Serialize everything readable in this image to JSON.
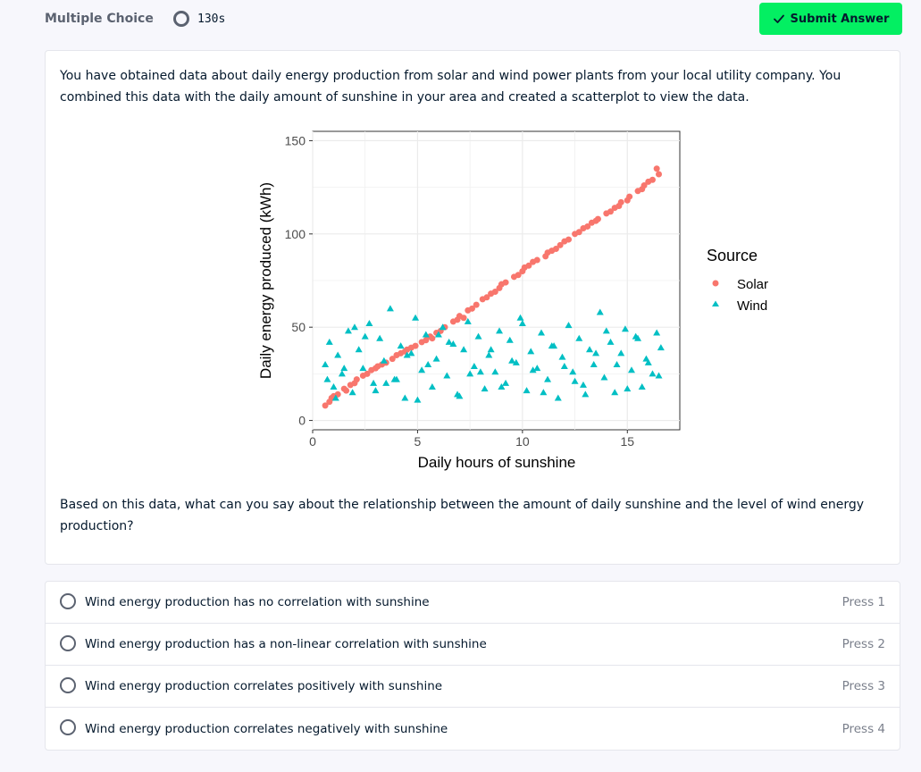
{
  "header": {
    "question_type": "Multiple Choice",
    "timer": "130s",
    "submit_label": "Submit Answer",
    "submit_color": "#03ef62",
    "timer_icon": "timer-ring-icon",
    "submit_icon": "checkmark-icon"
  },
  "prompt": "You have obtained data about daily energy production from solar and wind power plants from your local utility company. You combined this data with the daily amount of sunshine in your area and created a scatterplot to view the data.",
  "question": "Based on this data, what can you say about the relationship between the amount of daily sunshine and the level of wind energy production?",
  "chart_data": {
    "type": "scatter",
    "xlabel": "Daily hours of sunshine",
    "ylabel": "Daily energy produced (kWh)",
    "xlim": [
      0,
      17.5
    ],
    "ylim": [
      -5,
      155
    ],
    "xticks": [
      0,
      5,
      10,
      15
    ],
    "yticks": [
      0,
      50,
      100,
      150
    ],
    "grid": true,
    "legend": {
      "title": "Source",
      "position": "right"
    },
    "series": [
      {
        "name": "Solar",
        "marker": "circle",
        "color": "#f8766d",
        "x": [
          0.6,
          0.9,
          1.2,
          1.5,
          1.8,
          2.1,
          2.4,
          2.8,
          3.1,
          3.5,
          3.8,
          4.2,
          4.5,
          4.9,
          5.2,
          5.6,
          5.9,
          6.3,
          6.7,
          7.0,
          7.4,
          7.8,
          8.1,
          8.5,
          8.9,
          9.2,
          9.6,
          10.0,
          10.3,
          10.7,
          11.1,
          11.4,
          11.8,
          12.2,
          12.5,
          12.9,
          13.3,
          13.6,
          14.0,
          14.4,
          14.7,
          15.1,
          15.5,
          15.8,
          16.2,
          16.5,
          0.8,
          1.6,
          2.6,
          3.3,
          4.0,
          4.7,
          5.4,
          6.1,
          6.9,
          7.6,
          8.3,
          9.0,
          9.8,
          10.5,
          11.2,
          12.0,
          12.7,
          13.5,
          14.2,
          15.0,
          15.7,
          16.4,
          1.0,
          2.0,
          3.0,
          4.4,
          5.7,
          7.2,
          8.7,
          10.1,
          11.6,
          13.1,
          14.6,
          16.0
        ],
        "y": [
          8,
          12,
          14,
          17,
          19,
          22,
          24,
          27,
          29,
          31,
          33,
          36,
          38,
          40,
          42,
          45,
          47,
          50,
          53,
          56,
          59,
          62,
          65,
          68,
          71,
          74,
          77,
          80,
          83,
          86,
          88,
          91,
          94,
          97,
          100,
          103,
          106,
          108,
          111,
          114,
          117,
          120,
          123,
          126,
          129,
          132,
          10,
          16,
          25,
          30,
          35,
          39,
          43,
          48,
          54,
          60,
          66,
          73,
          78,
          85,
          90,
          96,
          101,
          107,
          112,
          118,
          124,
          135,
          13,
          20,
          28,
          37,
          44,
          55,
          69,
          82,
          92,
          104,
          115,
          128
        ]
      },
      {
        "name": "Wind",
        "marker": "triangle",
        "color": "#00bfc4",
        "x": [
          0.6,
          0.8,
          1.0,
          1.2,
          1.4,
          1.7,
          1.9,
          2.2,
          2.4,
          2.7,
          2.9,
          3.2,
          3.4,
          3.7,
          3.9,
          4.2,
          4.4,
          4.7,
          4.9,
          5.2,
          5.4,
          5.7,
          5.9,
          6.2,
          6.4,
          6.7,
          6.9,
          7.2,
          7.4,
          7.7,
          7.9,
          8.2,
          8.4,
          8.7,
          8.9,
          9.2,
          9.4,
          9.7,
          9.9,
          10.2,
          10.4,
          10.7,
          10.9,
          11.2,
          11.4,
          11.7,
          11.9,
          12.2,
          12.4,
          12.7,
          12.9,
          13.2,
          13.4,
          13.7,
          13.9,
          14.2,
          14.4,
          14.7,
          14.9,
          15.2,
          15.4,
          15.7,
          15.9,
          16.2,
          16.4,
          16.6,
          0.7,
          1.5,
          2.5,
          3.5,
          4.5,
          5.5,
          6.5,
          7.5,
          8.5,
          9.5,
          10.5,
          11.5,
          12.5,
          13.5,
          14.5,
          15.5,
          16.5,
          1.1,
          3.0,
          5.0,
          7.0,
          9.0,
          11.0,
          13.0,
          15.0,
          2.0,
          6.0,
          10.0,
          14.0,
          4.0,
          8.0,
          12.0,
          16.0
        ],
        "y": [
          30,
          42,
          18,
          35,
          25,
          48,
          15,
          38,
          28,
          52,
          20,
          44,
          32,
          60,
          22,
          40,
          12,
          36,
          55,
          27,
          46,
          18,
          33,
          50,
          24,
          41,
          14,
          38,
          53,
          29,
          45,
          17,
          35,
          26,
          48,
          20,
          43,
          31,
          55,
          16,
          37,
          28,
          47,
          22,
          40,
          12,
          34,
          51,
          26,
          44,
          19,
          38,
          30,
          58,
          23,
          42,
          15,
          36,
          49,
          27,
          45,
          18,
          33,
          25,
          47,
          39,
          22,
          28,
          45,
          20,
          35,
          30,
          42,
          25,
          38,
          32,
          27,
          40,
          21,
          36,
          30,
          44,
          24,
          12,
          16,
          11,
          13,
          18,
          15,
          14,
          17,
          50,
          46,
          52,
          48,
          22,
          26,
          29,
          31
        ]
      }
    ]
  },
  "options": [
    {
      "label": "Wind energy production has no correlation with sunshine",
      "key": "Press 1"
    },
    {
      "label": "Wind energy production has a non-linear correlation with sunshine",
      "key": "Press 2"
    },
    {
      "label": "Wind energy production correlates positively with sunshine",
      "key": "Press 3"
    },
    {
      "label": "Wind energy production correlates negatively with sunshine",
      "key": "Press 4"
    }
  ]
}
